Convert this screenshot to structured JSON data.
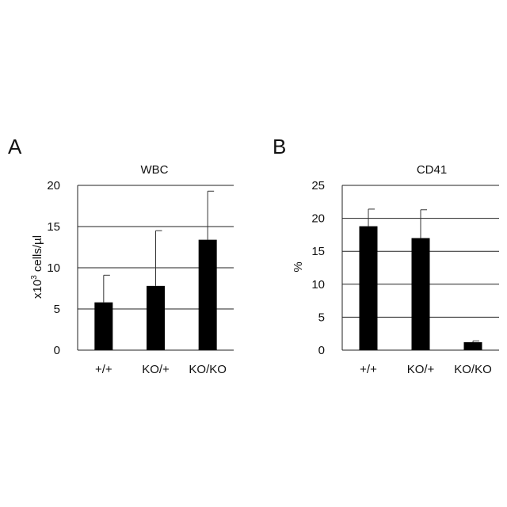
{
  "chart_data": [
    {
      "panel": "A",
      "type": "bar",
      "title": "WBC",
      "ylabel_parts": [
        "x10",
        "3",
        " cells/µl"
      ],
      "categories": [
        "+/+",
        "KO/+",
        "KO/KO"
      ],
      "values": [
        5.8,
        7.8,
        13.4
      ],
      "error_upper": [
        9.1,
        14.5,
        19.3
      ],
      "ylim": [
        0,
        20
      ],
      "yticks": [
        0,
        5,
        10,
        15,
        20
      ],
      "grid": true,
      "legend": "none"
    },
    {
      "panel": "B",
      "type": "bar",
      "title": "CD41",
      "ylabel_parts": [
        "%"
      ],
      "categories": [
        "+/+",
        "KO/+",
        "KO/KO"
      ],
      "values": [
        18.8,
        17.0,
        1.2
      ],
      "error_upper": [
        21.4,
        21.3,
        1.4
      ],
      "ylim": [
        0,
        25
      ],
      "yticks": [
        0,
        5,
        10,
        15,
        20,
        25
      ],
      "grid": true,
      "legend": "none"
    }
  ]
}
